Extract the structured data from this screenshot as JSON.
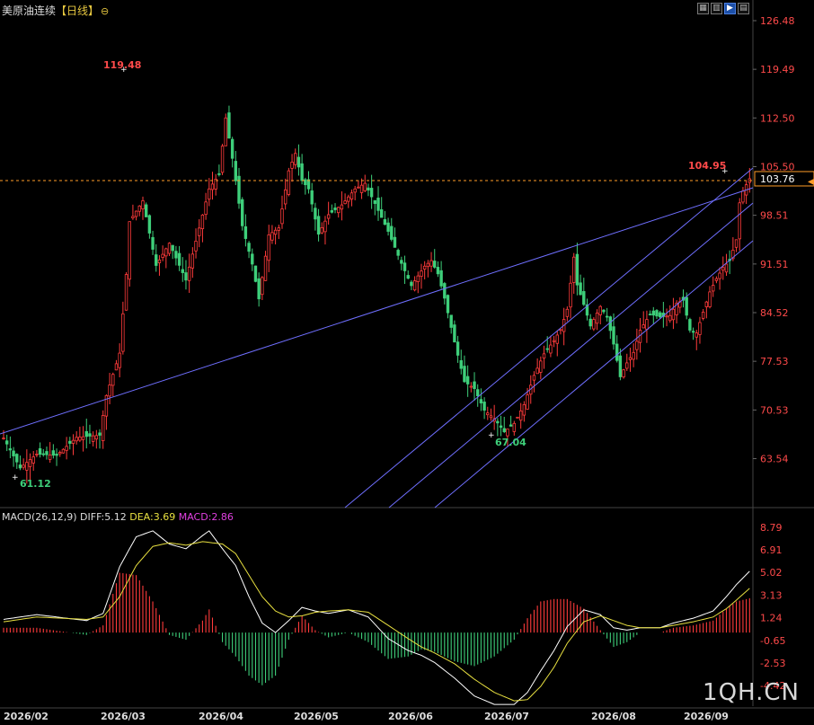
{
  "header": {
    "title": "美原油连续",
    "period": "【日线】",
    "icon": "zoom-circle-icon"
  },
  "toolbar": {
    "buttons": [
      {
        "name": "grid-icon",
        "glyph": "▦"
      },
      {
        "name": "layout-icon",
        "glyph": "▥"
      },
      {
        "name": "play-icon",
        "glyph": "▶",
        "active": true
      },
      {
        "name": "panel-icon",
        "glyph": "▤"
      }
    ]
  },
  "watermark": "1QH.CN",
  "macd": {
    "label": "MACD(26,12,9)",
    "diff_label": "DIFF:5.12",
    "dea_label": "DEA:3.69",
    "macd_label": "MACD:2.86"
  },
  "colors": {
    "up": "#ff3b3b",
    "down": "#3ecf7a",
    "trendline": "#6f6fff",
    "diff_line": "#ffffff",
    "dea_line": "#e8e040",
    "current_price_line": "#ff9c28",
    "axis_label": "#ff4a4a"
  },
  "chart_data": [
    {
      "type": "candlestick",
      "y_ticks": [
        "126.48",
        "119.49",
        "112.50",
        "105.50",
        "98.51",
        "91.51",
        "84.52",
        "77.53",
        "70.53",
        "63.54"
      ],
      "ylim": [
        58.5,
        126.48
      ],
      "x_ticks": [
        "2026/02",
        "2026/03",
        "2026/04",
        "2026/05",
        "2026/06",
        "2026/07",
        "2026/08",
        "2026/09"
      ],
      "current_price": "103.76",
      "annotations": [
        {
          "label": "119.48",
          "kind": "high",
          "index": 38
        },
        {
          "label": "104.95",
          "kind": "high",
          "index": 223
        },
        {
          "label": "67.04",
          "kind": "low",
          "index": 151
        },
        {
          "label": "61.12",
          "kind": "low",
          "index": 5
        }
      ],
      "anchors": [
        [
          0,
          66.5
        ],
        [
          5,
          62.2
        ],
        [
          10,
          64.2
        ],
        [
          16,
          64.0
        ],
        [
          22,
          66.6
        ],
        [
          29,
          66.9
        ],
        [
          31,
          72.6
        ],
        [
          35,
          78.7
        ],
        [
          37,
          90.0
        ],
        [
          38,
          97.6
        ],
        [
          42,
          100.6
        ],
        [
          46,
          91.3
        ],
        [
          50,
          94.5
        ],
        [
          55,
          89.2
        ],
        [
          58,
          94.8
        ],
        [
          62,
          102.3
        ],
        [
          65,
          104.4
        ],
        [
          67,
          112.5
        ],
        [
          69,
          106.7
        ],
        [
          72,
          97.0
        ],
        [
          75,
          91.5
        ],
        [
          77,
          86.5
        ],
        [
          80,
          95.7
        ],
        [
          83,
          96.7
        ],
        [
          86,
          104.9
        ],
        [
          88,
          107.4
        ],
        [
          90,
          103.5
        ],
        [
          92,
          102.3
        ],
        [
          95,
          95.8
        ],
        [
          98,
          98.6
        ],
        [
          102,
          100.0
        ],
        [
          106,
          102.3
        ],
        [
          109,
          103.1
        ],
        [
          112,
          100.2
        ],
        [
          116,
          96.2
        ],
        [
          120,
          91.6
        ],
        [
          123,
          88.4
        ],
        [
          127,
          91.2
        ],
        [
          129,
          92.0
        ],
        [
          131,
          90.1
        ],
        [
          133,
          86.6
        ],
        [
          136,
          80.3
        ],
        [
          139,
          74.6
        ],
        [
          142,
          73.6
        ],
        [
          145,
          70.5
        ],
        [
          148,
          69.3
        ],
        [
          151,
          67.4
        ],
        [
          154,
          68.6
        ],
        [
          157,
          71.3
        ],
        [
          160,
          75.5
        ],
        [
          163,
          78.6
        ],
        [
          166,
          80.5
        ],
        [
          168,
          82.1
        ],
        [
          170,
          85.0
        ],
        [
          172,
          92.5
        ],
        [
          173,
          88.5
        ],
        [
          175,
          85.7
        ],
        [
          177,
          82.6
        ],
        [
          180,
          85.4
        ],
        [
          182,
          83.9
        ],
        [
          184,
          80.0
        ],
        [
          186,
          75.3
        ],
        [
          188,
          77.3
        ],
        [
          190,
          78.8
        ],
        [
          192,
          82.0
        ],
        [
          195,
          84.3
        ],
        [
          198,
          83.9
        ],
        [
          201,
          84.1
        ],
        [
          203,
          85.9
        ],
        [
          205,
          86.3
        ],
        [
          207,
          82.0
        ],
        [
          209,
          81.6
        ],
        [
          211,
          84.6
        ],
        [
          213,
          87.5
        ],
        [
          215,
          89.4
        ],
        [
          217,
          91.0
        ],
        [
          219,
          92.0
        ],
        [
          221,
          95.0
        ],
        [
          222,
          100.3
        ],
        [
          223,
          102.0
        ],
        [
          224,
          102.9
        ],
        [
          225,
          103.76
        ]
      ],
      "trendlines": [
        {
          "start": [
            "2026/01 start",
            66.5
          ],
          "end": [
            "2026/09 end",
            100.1
          ]
        },
        {
          "channel": 1,
          "start": [
            "2026/06",
            58.5
          ],
          "end": [
            "2026/09",
            104.5
          ]
        },
        {
          "channel": 2,
          "start": [
            "2026/06",
            58.5
          ],
          "end": [
            "2026/09",
            99.0
          ]
        },
        {
          "channel": 3,
          "start": [
            "2026/06",
            58.5
          ],
          "end": [
            "2026/09",
            95.0
          ]
        }
      ]
    },
    {
      "type": "macd",
      "y_ticks": [
        "8.79",
        "6.91",
        "5.02",
        "3.13",
        "1.24",
        "-0.65",
        "-2.53",
        "-4.42"
      ],
      "ylim": [
        -6.3,
        8.79
      ],
      "diff_anchors": [
        [
          0,
          1.1
        ],
        [
          10,
          1.5
        ],
        [
          25,
          1.0
        ],
        [
          30,
          1.6
        ],
        [
          35,
          5.5
        ],
        [
          40,
          8.0
        ],
        [
          45,
          8.5
        ],
        [
          50,
          7.4
        ],
        [
          55,
          7.0
        ],
        [
          60,
          8.1
        ],
        [
          62,
          8.5
        ],
        [
          66,
          7.0
        ],
        [
          70,
          5.6
        ],
        [
          74,
          3.0
        ],
        [
          78,
          0.8
        ],
        [
          82,
          0.0
        ],
        [
          86,
          1.0
        ],
        [
          90,
          2.1
        ],
        [
          94,
          1.8
        ],
        [
          98,
          1.6
        ],
        [
          104,
          1.9
        ],
        [
          110,
          1.3
        ],
        [
          116,
          -0.5
        ],
        [
          122,
          -1.5
        ],
        [
          126,
          -1.9
        ],
        [
          130,
          -2.5
        ],
        [
          136,
          -3.8
        ],
        [
          142,
          -5.3
        ],
        [
          148,
          -6.0
        ],
        [
          154,
          -6.0
        ],
        [
          158,
          -5.0
        ],
        [
          162,
          -3.2
        ],
        [
          166,
          -1.5
        ],
        [
          170,
          0.5
        ],
        [
          175,
          1.9
        ],
        [
          180,
          1.5
        ],
        [
          184,
          0.4
        ],
        [
          188,
          0.2
        ],
        [
          192,
          0.4
        ],
        [
          198,
          0.4
        ],
        [
          202,
          0.8
        ],
        [
          208,
          1.2
        ],
        [
          214,
          1.8
        ],
        [
          218,
          3.0
        ],
        [
          221,
          4.0
        ],
        [
          225,
          5.12
        ]
      ],
      "dea_anchors": [
        [
          0,
          0.9
        ],
        [
          10,
          1.3
        ],
        [
          25,
          1.1
        ],
        [
          30,
          1.3
        ],
        [
          35,
          3.0
        ],
        [
          40,
          5.6
        ],
        [
          45,
          7.2
        ],
        [
          50,
          7.5
        ],
        [
          55,
          7.3
        ],
        [
          60,
          7.6
        ],
        [
          66,
          7.4
        ],
        [
          70,
          6.6
        ],
        [
          74,
          4.8
        ],
        [
          78,
          3.0
        ],
        [
          82,
          1.8
        ],
        [
          86,
          1.3
        ],
        [
          90,
          1.4
        ],
        [
          94,
          1.7
        ],
        [
          98,
          1.8
        ],
        [
          104,
          1.9
        ],
        [
          110,
          1.7
        ],
        [
          116,
          0.6
        ],
        [
          122,
          -0.5
        ],
        [
          126,
          -1.2
        ],
        [
          130,
          -1.7
        ],
        [
          136,
          -2.6
        ],
        [
          142,
          -3.9
        ],
        [
          148,
          -5.0
        ],
        [
          154,
          -5.7
        ],
        [
          158,
          -5.6
        ],
        [
          162,
          -4.5
        ],
        [
          166,
          -2.9
        ],
        [
          170,
          -0.9
        ],
        [
          175,
          0.9
        ],
        [
          180,
          1.4
        ],
        [
          184,
          1.0
        ],
        [
          188,
          0.6
        ],
        [
          192,
          0.4
        ],
        [
          198,
          0.4
        ],
        [
          202,
          0.6
        ],
        [
          208,
          0.9
        ],
        [
          214,
          1.3
        ],
        [
          218,
          2.0
        ],
        [
          221,
          2.7
        ],
        [
          225,
          3.69
        ]
      ]
    }
  ]
}
